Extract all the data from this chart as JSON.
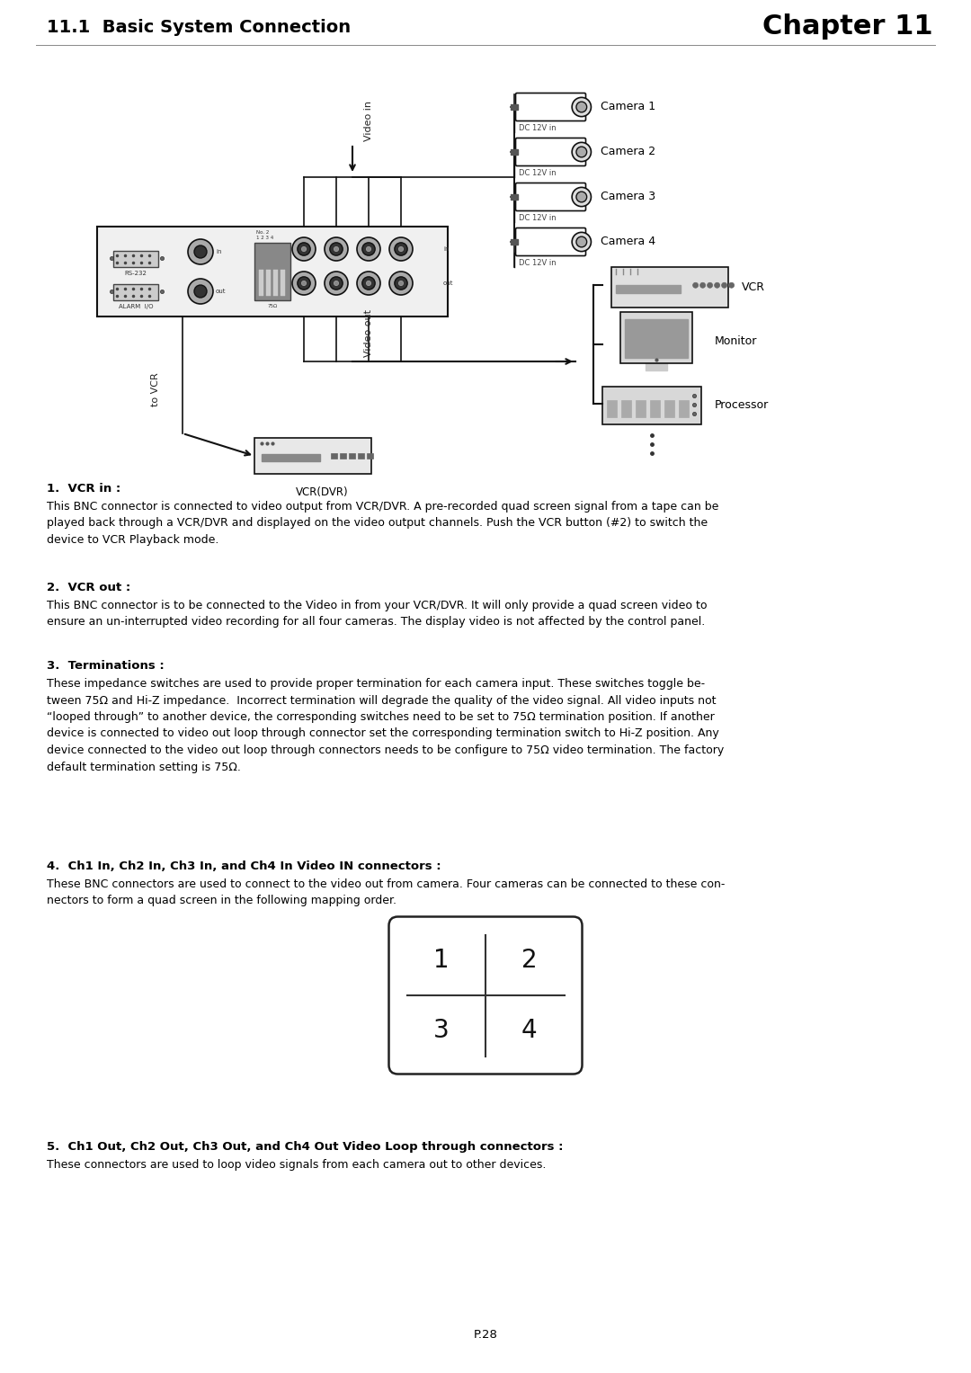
{
  "title_left": "11.1  Basic System Connection",
  "title_right": "Chapter 11",
  "bg_color": "#ffffff",
  "text_color": "#000000",
  "page_number": "P.28",
  "section1_heading": "1.  VCR in :",
  "section1_body": "This BNC connector is connected to video output from VCR/DVR. A pre-recorded quad screen signal from a tape can be\nplayed back through a VCR/DVR and displayed on the video output channels. Push the VCR button (#2) to switch the\ndevice to VCR Playback mode.",
  "section2_heading": "2.  VCR out :",
  "section2_body": "This BNC connector is to be connected to the Video in from your VCR/DVR. It will only provide a quad screen video to\nensure an un-interrupted video recording for all four cameras. The display video is not affected by the control panel.",
  "section3_heading": "3.  Terminations :",
  "section3_body": "These impedance switches are used to provide proper termination for each camera input. These switches toggle be-\ntween 75Ω and Hi-Z impedance.  Incorrect termination will degrade the quality of the video signal. All video inputs not\n“looped through” to another device, the corresponding switches need to be set to 75Ω termination position. If another\ndevice is connected to video out loop through connector set the corresponding termination switch to Hi-Z position. Any\ndevice connected to the video out loop through connectors needs to be configure to 75Ω video termination. The factory\ndefault termination setting is 75Ω.",
  "section4_heading": "4.  Ch1 In, Ch2 In, Ch3 In, and Ch4 In Video IN connectors :",
  "section4_body": "These BNC connectors are used to connect to the video out from camera. Four cameras can be connected to these con-\nnectors to form a quad screen in the following mapping order.",
  "section5_heading": "5.  Ch1 Out, Ch2 Out, Ch3 Out, and Ch4 Out Video Loop through connectors :",
  "section5_body": "These connectors are used to loop video signals from each camera out to other devices.",
  "quad_cells": [
    "1",
    "2",
    "3",
    "4"
  ],
  "cam_labels": [
    "Camera 1",
    "Camera 2",
    "Camera 3",
    "Camera 4"
  ]
}
